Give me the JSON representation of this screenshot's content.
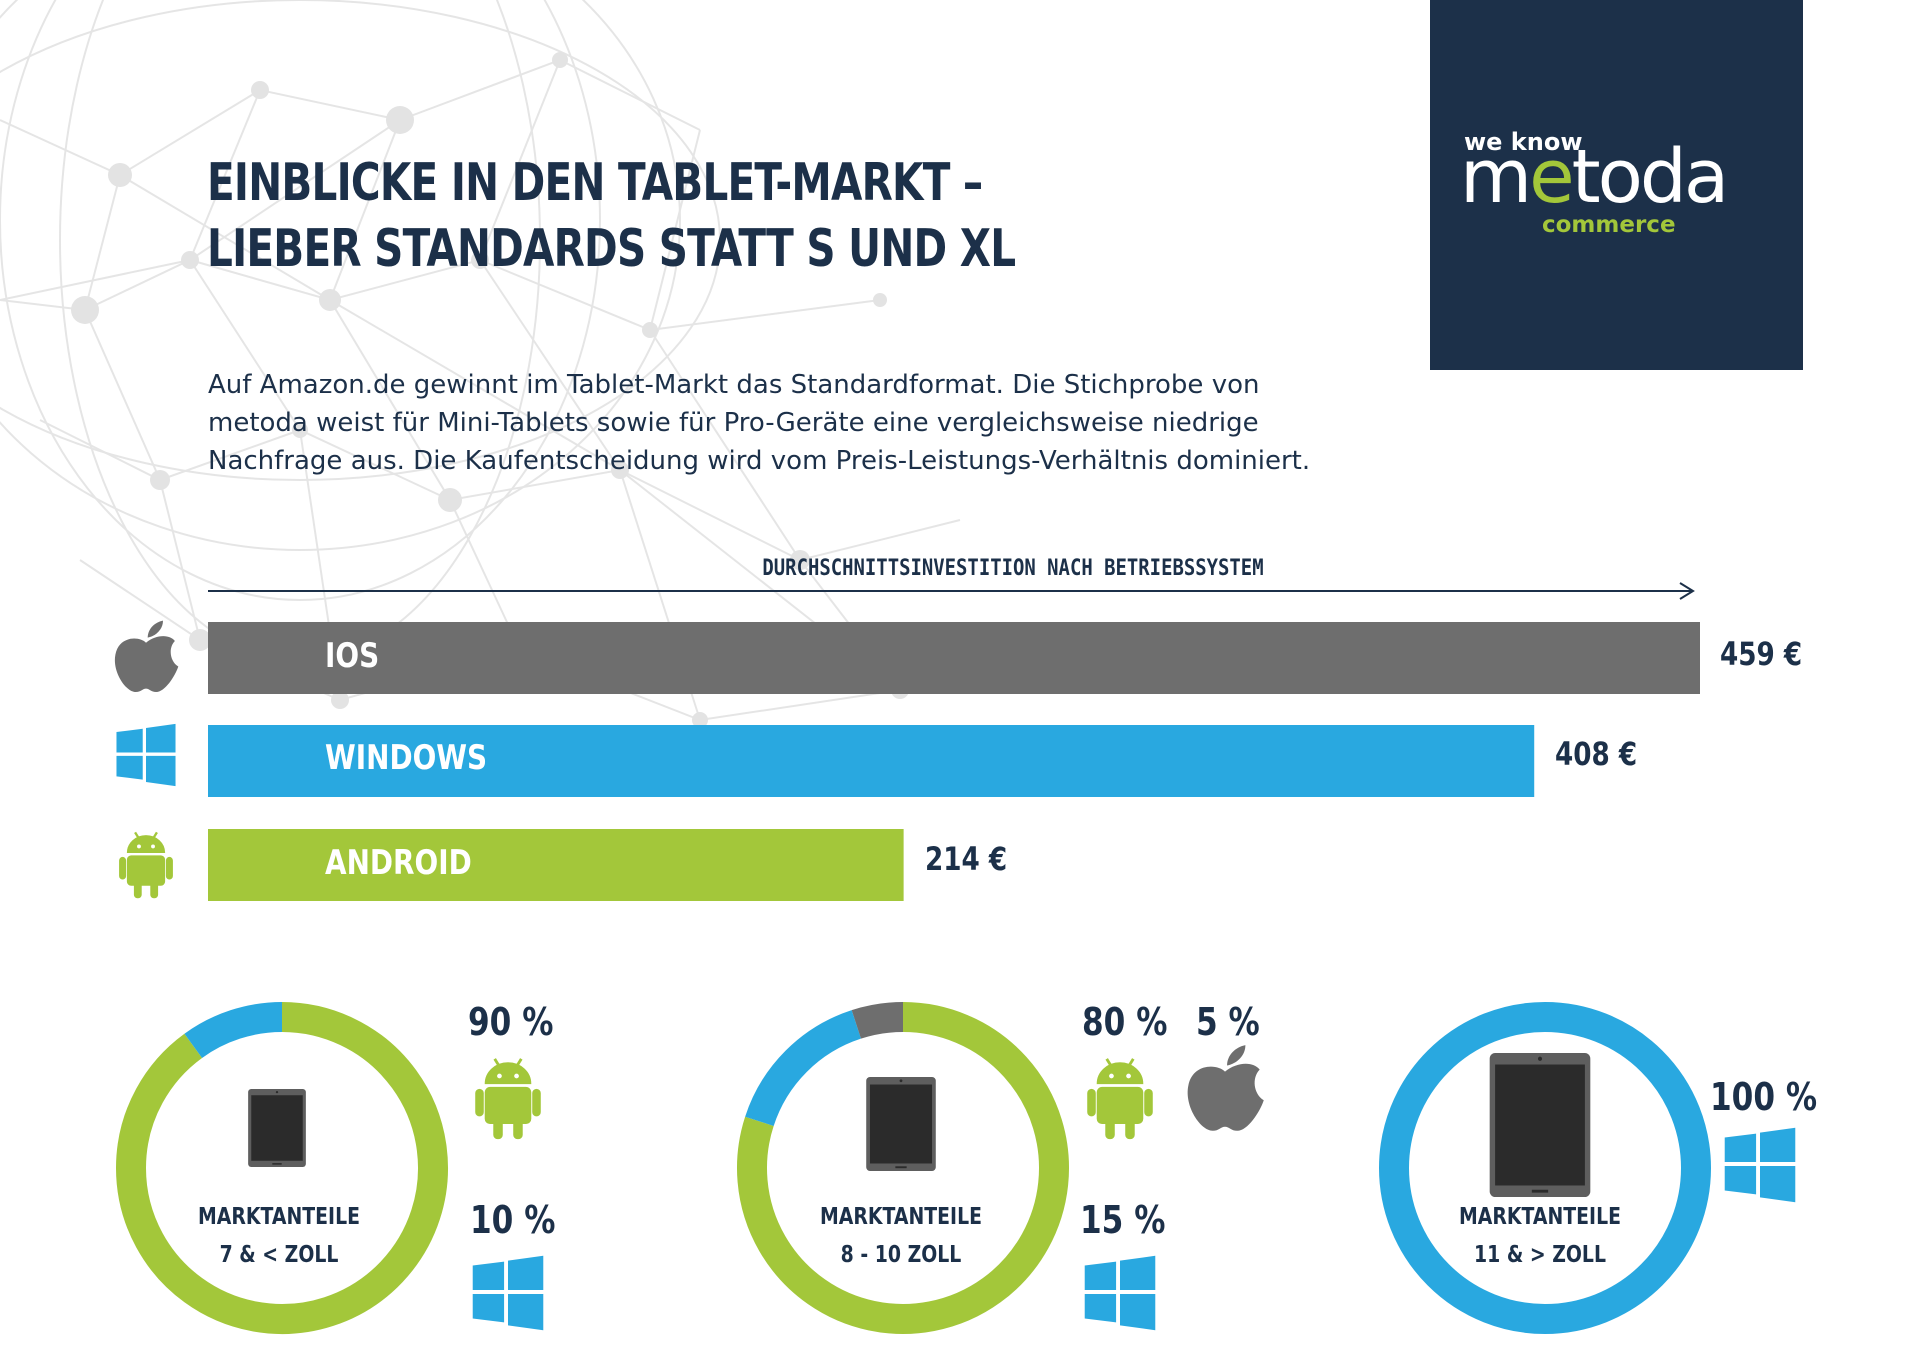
{
  "title_line1": "EINBLICKE IN DEN TABLET-MARKT –",
  "title_line2": "LIEBER STANDARDS STATT S UND XL",
  "intro": [
    "Auf Amazon.de gewinnt im Tablet-Markt das Standardformat. Die Stichprobe von",
    "metoda weist für Mini-Tablets sowie für Pro-Geräte eine vergleichsweise niedrige",
    "Nachfrage aus. Die Kaufentscheidung wird vom Preis-Leistungs-Verhältnis dominiert."
  ],
  "logo": {
    "tagline": "we know",
    "name_pre": "m",
    "name_e": "e",
    "name_post": "toda",
    "sub": "commerce"
  },
  "colors": {
    "navy": "#1c3049",
    "ios": "#6e6e6e",
    "windows": "#29a8e0",
    "android": "#a3c73a"
  },
  "chart_data": [
    {
      "type": "bar",
      "title": "DURCHSCHNITTSINVESTITION NACH BETRIEBSSYSTEM",
      "categories": [
        "IOS",
        "WINDOWS",
        "ANDROID"
      ],
      "values": [
        459,
        408,
        214
      ],
      "value_labels": [
        "459 €",
        "408 €",
        "214 €"
      ],
      "icons": [
        "apple-icon",
        "windows-icon",
        "android-icon"
      ]
    },
    {
      "type": "pie",
      "title": [
        "MARKTANTEILE",
        "7 & < ZOLL"
      ],
      "segments": [
        {
          "name": "Android",
          "value": 90,
          "label": "90 %",
          "icon": "android-icon"
        },
        {
          "name": "Windows",
          "value": 10,
          "label": "10 %",
          "icon": "windows-icon"
        }
      ]
    },
    {
      "type": "pie",
      "title": [
        "MARKTANTEILE",
        "8 - 10 ZOLL"
      ],
      "segments": [
        {
          "name": "Android",
          "value": 80,
          "label": "80 %",
          "icon": "android-icon"
        },
        {
          "name": "Windows",
          "value": 15,
          "label": "15 %",
          "icon": "windows-icon"
        },
        {
          "name": "iOS",
          "value": 5,
          "label": "5 %",
          "icon": "apple-icon"
        }
      ]
    },
    {
      "type": "pie",
      "title": [
        "MARKTANTEILE",
        "11 & > ZOLL"
      ],
      "segments": [
        {
          "name": "Windows",
          "value": 100,
          "label": "100 %",
          "icon": "windows-icon"
        }
      ]
    }
  ]
}
